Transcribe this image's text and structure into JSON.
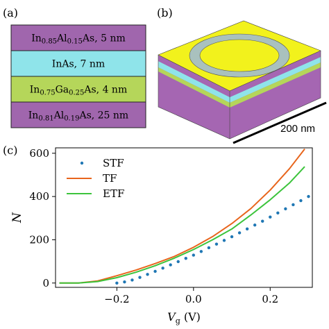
{
  "panel_a": {
    "label": "(a)",
    "layers": [
      {
        "text": "In0.85Al0.15As, 5 nm",
        "parts": [
          [
            "In",
            ""
          ],
          [
            "0.85",
            "sub"
          ],
          [
            "Al",
            ""
          ],
          [
            "0.15",
            "sub"
          ],
          [
            "As, 5 nm",
            ""
          ]
        ],
        "color": "#a066ad"
      },
      {
        "text": "InAs, 7 nm",
        "parts": [
          [
            "InAs, 7 nm",
            ""
          ]
        ],
        "color": "#8fe4ea"
      },
      {
        "text": "In0.75Ga0.25As, 4 nm",
        "parts": [
          [
            "In",
            ""
          ],
          [
            "0.75",
            "sub"
          ],
          [
            "Ga",
            ""
          ],
          [
            "0.25",
            "sub"
          ],
          [
            "As, 4 nm",
            ""
          ]
        ],
        "color": "#b5d65a"
      },
      {
        "text": "In0.81Al0.19As, 25 nm",
        "parts": [
          [
            "In",
            ""
          ],
          [
            "0.81",
            "sub"
          ],
          [
            "Al",
            ""
          ],
          [
            "0.19",
            "sub"
          ],
          [
            "As, 25 nm",
            ""
          ]
        ],
        "color": "#a066ad"
      }
    ]
  },
  "panel_b": {
    "label": "(b)",
    "scale_label": "200 nm",
    "colors": {
      "top": "#f2f21c",
      "ring": "#a9c1be",
      "purple": "#a566b2",
      "cyan": "#8fe4ea",
      "green": "#b5d65a"
    }
  },
  "panel_c": {
    "label": "(c)",
    "chart_data": {
      "type": "line",
      "xlabel": "V_g (V)",
      "ylabel": "N",
      "xlim": [
        -0.36,
        0.31
      ],
      "ylim": [
        -20,
        625
      ],
      "xticks": [
        -0.2,
        0.0,
        0.2
      ],
      "xtick_labels": [
        "−0.2",
        "0.0",
        "0.2"
      ],
      "yticks": [
        0,
        200,
        400,
        600
      ],
      "ytick_labels": [
        "0",
        "200",
        "400",
        "600"
      ],
      "grid": false,
      "legend_position": "top-left",
      "series": [
        {
          "name": "STF",
          "style": "dots",
          "color": "#1f77b4",
          "x": [
            -0.2,
            -0.18,
            -0.16,
            -0.14,
            -0.12,
            -0.1,
            -0.08,
            -0.06,
            -0.04,
            -0.02,
            0.0,
            0.02,
            0.04,
            0.06,
            0.08,
            0.1,
            0.12,
            0.14,
            0.16,
            0.18,
            0.2,
            0.22,
            0.24,
            0.26,
            0.28,
            0.3
          ],
          "y": [
            0,
            5,
            14,
            26,
            40,
            54,
            69,
            84,
            99,
            114,
            129,
            146,
            163,
            180,
            197,
            214,
            232,
            250,
            268,
            286,
            305,
            324,
            343,
            362,
            381,
            400
          ]
        },
        {
          "name": "TF",
          "style": "line",
          "color": "#e8651c",
          "x": [
            -0.35,
            -0.3,
            -0.25,
            -0.2,
            -0.15,
            -0.1,
            -0.05,
            0.0,
            0.05,
            0.1,
            0.15,
            0.2,
            0.25,
            0.29
          ],
          "y": [
            0,
            0,
            10,
            34,
            60,
            90,
            123,
            165,
            215,
            275,
            345,
            430,
            528,
            620
          ]
        },
        {
          "name": "ETF",
          "style": "line",
          "color": "#3cc43c",
          "x": [
            -0.35,
            -0.3,
            -0.25,
            -0.2,
            -0.15,
            -0.1,
            -0.05,
            0.0,
            0.05,
            0.1,
            0.15,
            0.2,
            0.25,
            0.29
          ],
          "y": [
            0,
            0,
            7,
            25,
            50,
            80,
            115,
            155,
            200,
            250,
            315,
            385,
            462,
            538
          ]
        }
      ]
    }
  }
}
